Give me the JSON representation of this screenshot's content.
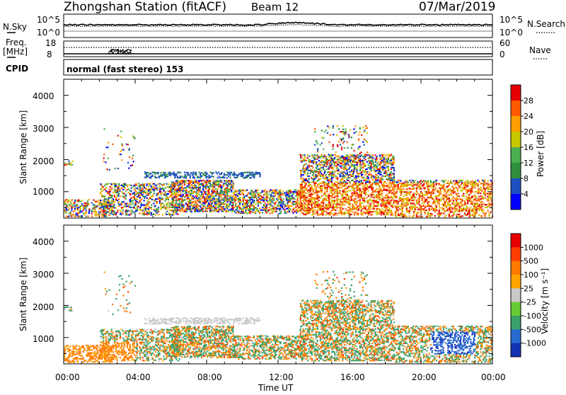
{
  "header": {
    "title": "Zhongshan Station (fitACF)",
    "beam": "Beam 12",
    "date": "07/Mar/2019"
  },
  "panels": {
    "sky": {
      "left_label": "N.Sky",
      "right_label": "N.Search",
      "ticks_left": [
        "10^5",
        "10^0"
      ],
      "ticks_right": [
        "10^5",
        "10^0"
      ]
    },
    "freq": {
      "left_label_1": "Freq.",
      "left_label_2": "[MHz]",
      "right_label": "Nave",
      "ticks_left": [
        "18",
        "8"
      ],
      "ticks_right": [
        "60",
        "0"
      ]
    },
    "cpid": {
      "label": "CPID",
      "value": "normal (fast stereo) 153"
    },
    "power": {
      "ylabel": "Slant Range [km]",
      "yticks": [
        "4000",
        "3000",
        "2000",
        "1000"
      ],
      "colorbar_label": "Power [dB]",
      "colorbar_ticks": [
        "28",
        "24",
        "20",
        "16",
        "12",
        "8",
        "4"
      ],
      "colors": [
        "#0000ff",
        "#1d4fbf",
        "#2f8f3f",
        "#4caf50",
        "#c8c800",
        "#ff9e00",
        "#ff5a00",
        "#e60000"
      ]
    },
    "velocity": {
      "ylabel": "Slant Range [km]",
      "yticks": [
        "4000",
        "3000",
        "2000",
        "1000"
      ],
      "colorbar_label": "Velocity [m s⁻¹]",
      "colorbar_ticks": [
        "1000",
        "500",
        "100",
        "25",
        "-25",
        "-100",
        "-500",
        "-1000"
      ],
      "colors": [
        "#1432b4",
        "#2a6bd0",
        "#3aa06a",
        "#66cc33",
        "#c8c8c8",
        "#ffa500",
        "#ff7a00",
        "#ff3c00",
        "#e60000"
      ]
    }
  },
  "xaxis": {
    "label": "Time UT",
    "ticks": [
      "00:00",
      "04:00",
      "08:00",
      "12:00",
      "16:00",
      "20:00",
      "00:00"
    ]
  },
  "chart_data": {
    "type": "heatmap",
    "title": "Zhongshan Station (fitACF)",
    "xlabel": "Time UT",
    "ylabel": "Slant Range [km]",
    "x_range_hours": [
      0,
      24
    ],
    "y_range_km": [
      180,
      4500
    ],
    "power_colorbar_db": [
      0,
      32
    ],
    "velocity_colorbar_ms": [
      -1000,
      1000
    ]
  }
}
